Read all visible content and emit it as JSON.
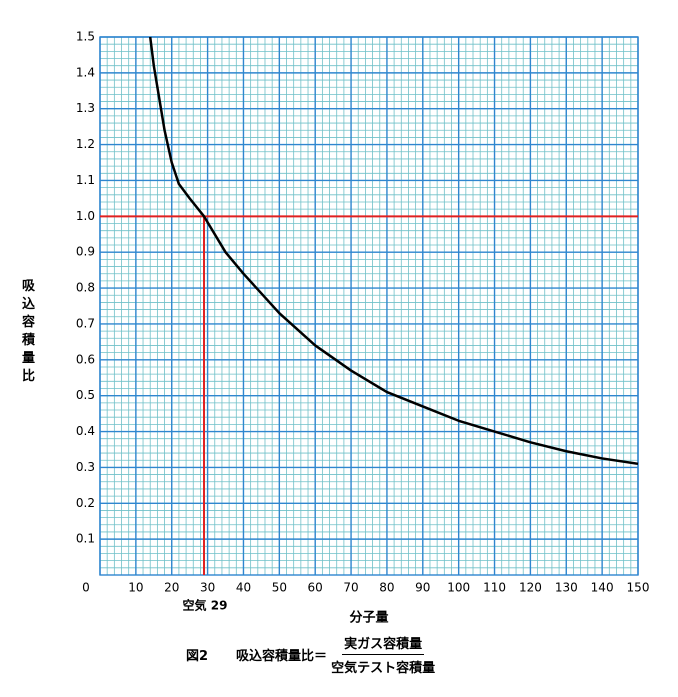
{
  "chart_data": {
    "type": "line",
    "x_label": "分子量",
    "y_label": "吸込容積量比",
    "annotation": "空気 29",
    "caption": {
      "figure": "図2",
      "lhs": "吸込容積量比＝",
      "numerator": "実ガス容積量",
      "denominator": "空気テスト容積量"
    },
    "x": [
      14,
      15,
      16,
      18,
      20,
      22,
      25,
      29,
      35,
      40,
      50,
      60,
      70,
      80,
      90,
      100,
      110,
      120,
      130,
      140,
      150
    ],
    "series": [
      {
        "color": "#000000",
        "values": [
          1.5,
          1.42,
          1.36,
          1.24,
          1.15,
          1.09,
          1.05,
          1.0,
          0.9,
          0.84,
          0.73,
          0.64,
          0.57,
          0.51,
          0.47,
          0.43,
          0.4,
          0.37,
          0.345,
          0.325,
          0.31
        ]
      }
    ],
    "xlim": [
      0,
      150
    ],
    "ylim": [
      0,
      1.5
    ],
    "xticks": [
      0,
      10,
      20,
      30,
      40,
      50,
      60,
      70,
      80,
      90,
      100,
      110,
      120,
      130,
      140,
      150
    ],
    "yticks": [
      0.1,
      0.2,
      0.3,
      0.4,
      0.5,
      0.6,
      0.7,
      0.8,
      0.9,
      {
        "value": 1,
        "label": "1.0"
      },
      1.1,
      1.2,
      1.3,
      1.4,
      1.5
    ],
    "reference_lines": {
      "y": 1,
      "x": 29,
      "color": "#e02020"
    },
    "grid": true,
    "grid_color": "#2f86cf",
    "minor_grid_color": "#6fc0c8"
  }
}
